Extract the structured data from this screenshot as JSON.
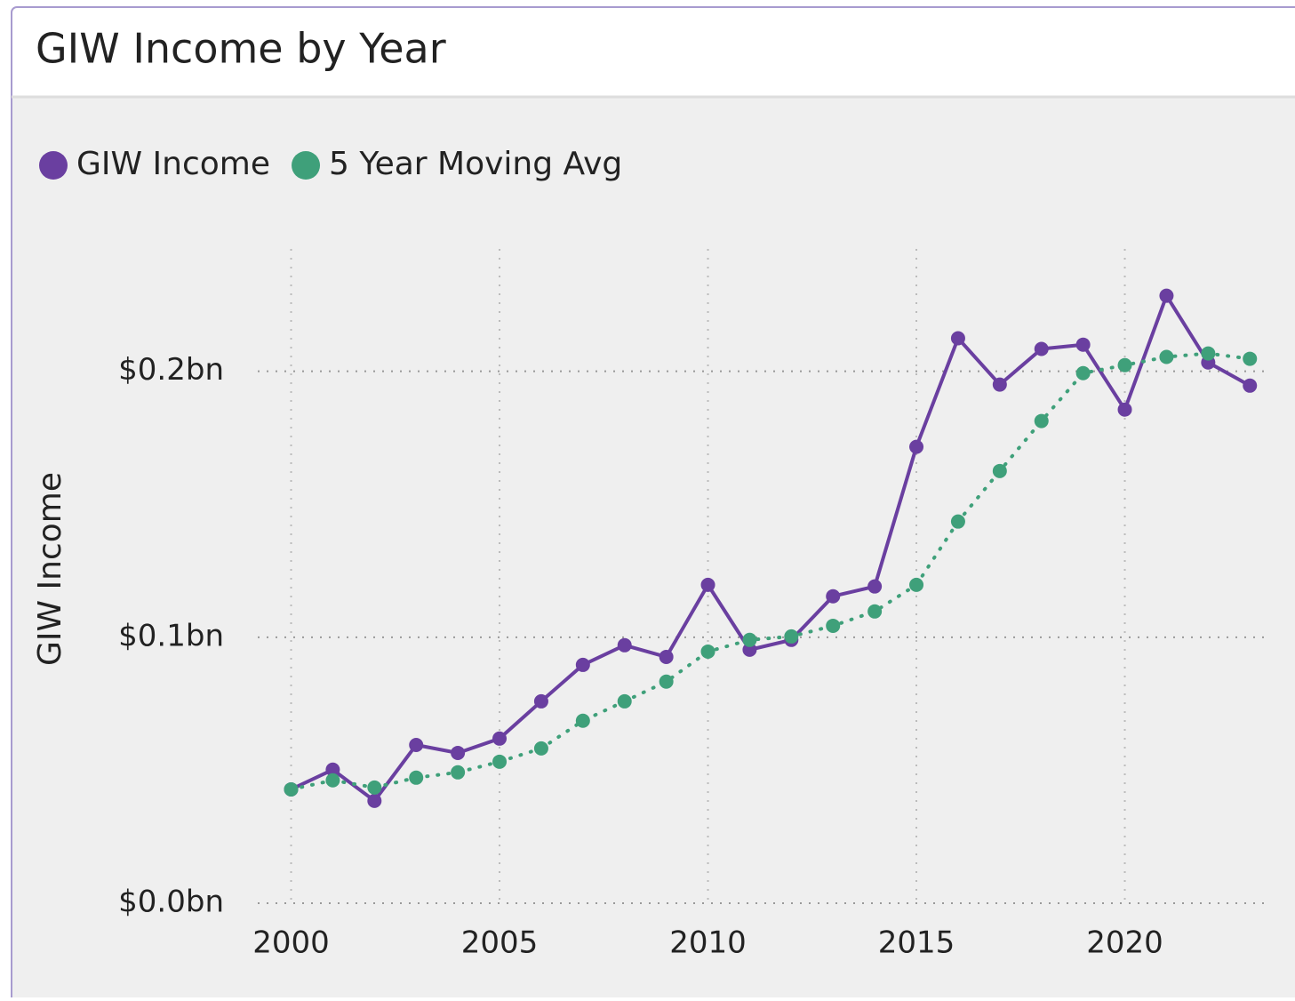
{
  "chart_data": {
    "type": "line",
    "title": "GIW Income by Year",
    "ylabel": "GIW Income",
    "x": [
      2000,
      2001,
      2002,
      2003,
      2004,
      2005,
      2006,
      2007,
      2008,
      2009,
      2010,
      2011,
      2012,
      2013,
      2014,
      2015,
      2016,
      2017,
      2018,
      2019,
      2020,
      2021,
      2022,
      2023
    ],
    "series": [
      {
        "name": "GIW Income",
        "color": "#6a3fa0",
        "values": [
          0.0428,
          0.0502,
          0.0385,
          0.0595,
          0.0565,
          0.0619,
          0.0759,
          0.0896,
          0.097,
          0.0926,
          0.1197,
          0.0953,
          0.099,
          0.1154,
          0.1191,
          0.1716,
          0.2124,
          0.195,
          0.2084,
          0.21,
          0.1856,
          0.2284,
          0.2033,
          0.1946
        ]
      },
      {
        "name": "5 Year Moving Avg",
        "color": "#3fa07a",
        "values": [
          0.0428,
          0.0462,
          0.0435,
          0.0472,
          0.0492,
          0.0532,
          0.0582,
          0.0686,
          0.0759,
          0.0833,
          0.0946,
          0.099,
          0.1003,
          0.1043,
          0.1097,
          0.1197,
          0.1435,
          0.1625,
          0.1813,
          0.1993,
          0.2023,
          0.2054,
          0.2067,
          0.2047
        ]
      }
    ],
    "xlim": [
      1999.2,
      2023.4
    ],
    "xticks": [
      2000,
      2005,
      2010,
      2015,
      2020
    ],
    "ylim": [
      0,
      0.246
    ],
    "yticks": [
      {
        "value": 0,
        "label": "$0.0bn"
      },
      {
        "value": 0.1,
        "label": "$0.1bn"
      },
      {
        "value": 0.2,
        "label": "$0.2bn"
      }
    ],
    "grid": true
  }
}
